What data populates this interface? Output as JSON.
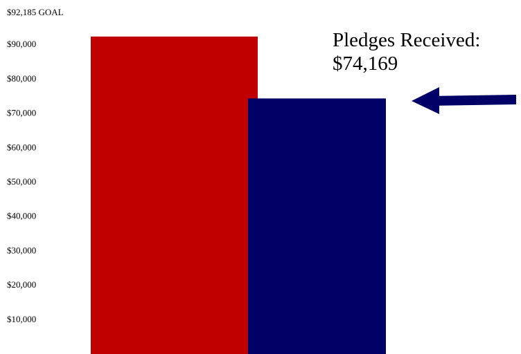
{
  "chart_data": {
    "type": "bar",
    "goal_label": "$92,185 GOAL",
    "categories": [
      "Goal",
      "Pledges Received"
    ],
    "values": [
      92185,
      74169
    ],
    "yticks": [
      10000,
      20000,
      30000,
      40000,
      50000,
      60000,
      70000,
      80000,
      90000
    ],
    "ytick_labels": [
      "$10,000",
      "$20,000",
      "$30,000",
      "$40,000",
      "$50,000",
      "$60,000",
      "$70,000",
      "$80,000",
      "$90,000"
    ],
    "ylim": [
      0,
      92185
    ],
    "grid": false,
    "legend": "none",
    "annotation": {
      "line1": "Pledges Received:",
      "line2": "$74,169",
      "arrow_icon": "left-arrow-icon"
    },
    "colors": {
      "goal_bar": "#c00000",
      "pledges_bar": "#000066",
      "arrow": "#000066"
    }
  }
}
